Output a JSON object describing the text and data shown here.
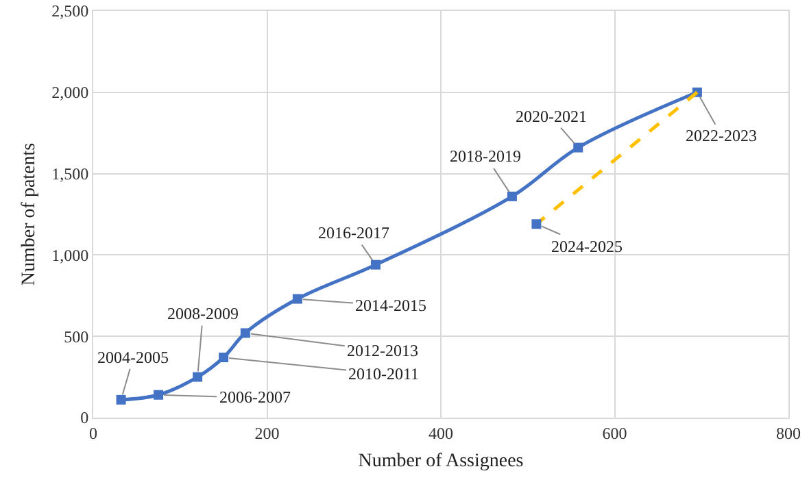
{
  "chart_data": {
    "type": "line",
    "xlabel": "Number of Assignees",
    "ylabel": "Number of patents",
    "xlim": [
      0,
      800
    ],
    "xticks": [
      0,
      200,
      400,
      600,
      800
    ],
    "ylim": [
      0,
      2500
    ],
    "yticks": [
      {
        "value": 0,
        "label": "0"
      },
      {
        "value": 500,
        "label": "500"
      },
      {
        "value": 1000,
        "label": "1,000"
      },
      {
        "value": 1500,
        "label": "1,500"
      },
      {
        "value": 2000,
        "label": "2,000"
      },
      {
        "value": 2500,
        "label": "2,500"
      }
    ],
    "grid": true,
    "series": [
      {
        "color": "#4472c4",
        "marker": "square",
        "line_style": "solid",
        "x": [
          32,
          75,
          120,
          150,
          175,
          235,
          325,
          482,
          558,
          695
        ],
        "values": [
          110,
          140,
          250,
          370,
          520,
          730,
          940,
          1360,
          1660,
          2000
        ]
      },
      {
        "color": "#ffc000",
        "marker": "none",
        "line_style": "dashed",
        "x": [
          695,
          510
        ],
        "values": [
          2000,
          1190
        ]
      },
      {
        "type": "scatter",
        "color": "#4472c4",
        "marker": "square",
        "x": [
          510
        ],
        "values": [
          1190
        ]
      }
    ],
    "annotations": [
      {
        "text": "2004-2005",
        "x": 32,
        "y": 110
      },
      {
        "text": "2006-2007",
        "x": 75,
        "y": 140
      },
      {
        "text": "2008-2009",
        "x": 120,
        "y": 250
      },
      {
        "text": "2010-2011",
        "x": 150,
        "y": 370
      },
      {
        "text": "2012-2013",
        "x": 175,
        "y": 520
      },
      {
        "text": "2014-2015",
        "x": 235,
        "y": 730
      },
      {
        "text": "2016-2017",
        "x": 325,
        "y": 940
      },
      {
        "text": "2018-2019",
        "x": 482,
        "y": 1360
      },
      {
        "text": "2020-2021",
        "x": 558,
        "y": 1660
      },
      {
        "text": "2022-2023",
        "x": 695,
        "y": 2000
      },
      {
        "text": "2024-2025",
        "x": 510,
        "y": 1190
      }
    ]
  }
}
